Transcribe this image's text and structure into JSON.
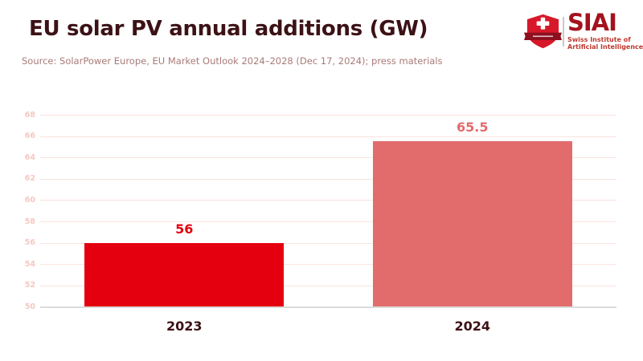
{
  "header": {
    "title": "EU solar PV annual additions (GW)",
    "source": "Source: SolarPower Europe, EU Market Outlook 2024–2028 (Dec 17, 2024); press materials",
    "logo": {
      "acronym": "SIAI",
      "name_line1": "Swiss Institute of",
      "name_line2": "Artificial Intelligence"
    }
  },
  "chart_data": {
    "type": "bar",
    "title": "EU solar PV annual additions (GW)",
    "categories": [
      "2023",
      "2024"
    ],
    "values": [
      56,
      65.5
    ],
    "value_labels": [
      "56",
      "65.5"
    ],
    "bar_colors": [
      "#E4000F",
      "#E26C6C"
    ],
    "label_colors": [
      "#E4000F",
      "#E26C6C"
    ],
    "xlabel": "",
    "ylabel": "",
    "ylim": [
      50,
      68
    ],
    "yticks": [
      50,
      52,
      54,
      56,
      58,
      60,
      62,
      64,
      66,
      68
    ],
    "grid": true,
    "legend": false
  },
  "colors": {
    "title_color": "#3C1216",
    "source_color": "#A87B78",
    "ytick_color": "#F4C8C2",
    "gridline_color": "#FAE3DF",
    "baseline_color": "#DBDBDB",
    "logo_red": "#A4121E",
    "logo_subtext": "#BE3A2F",
    "shield_red": "#D7182A",
    "banner_red": "#8E1020"
  }
}
